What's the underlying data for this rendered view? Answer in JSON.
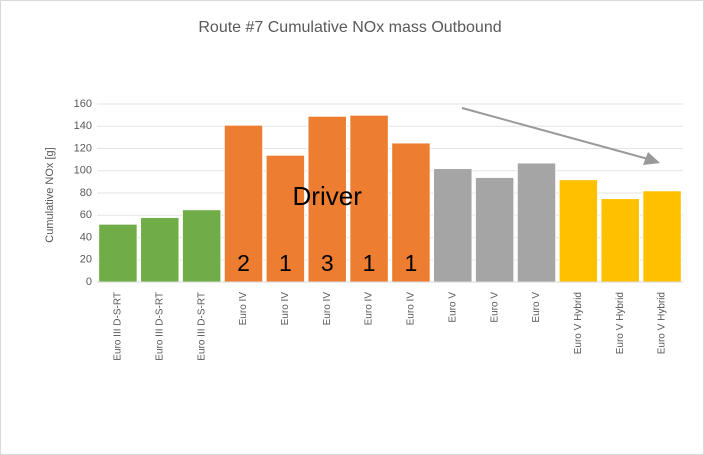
{
  "chart_data": {
    "type": "bar",
    "title": "Route #7 Cumulative NOx mass Outbound",
    "y_label": "Cumulative NOx [g]",
    "categories": [
      "Euro III D-S-RT",
      "Euro III D-S-RT",
      "Euro III D-S-RT",
      "Euro IV",
      "Euro IV",
      "Euro IV",
      "Euro IV",
      "Euro IV",
      "Euro V",
      "Euro V",
      "Euro V",
      "Euro V Hybrid",
      "Euro V Hybrid",
      "Euro V Hybrid"
    ],
    "values": [
      52,
      58,
      65,
      141,
      114,
      149,
      150,
      125,
      102,
      94,
      107,
      92,
      75,
      82
    ],
    "colors": [
      "#70ad47",
      "#70ad47",
      "#70ad47",
      "#ed7d31",
      "#ed7d31",
      "#ed7d31",
      "#ed7d31",
      "#ed7d31",
      "#a5a5a5",
      "#a5a5a5",
      "#a5a5a5",
      "#ffc000",
      "#ffc000",
      "#ffc000"
    ],
    "ylim": [
      0,
      160
    ],
    "yticks": [
      0,
      20,
      40,
      60,
      80,
      100,
      120,
      140,
      160
    ],
    "grid": true,
    "annotations": {
      "label": "Driver",
      "driver_counts": [
        2,
        1,
        3,
        1,
        1
      ]
    }
  }
}
